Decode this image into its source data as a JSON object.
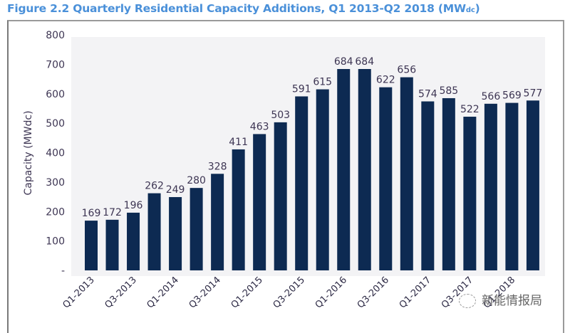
{
  "title": {
    "main": "Figure 2.2 Quarterly Residential Capacity Additions, Q1 2013-Q2 2018 (MW",
    "subscript": "dc",
    "close": ")"
  },
  "watermark": {
    "text": "新能情报局"
  },
  "colors": {
    "bar": "#0d2a52",
    "title": "#4a90d9",
    "plot_background": "#f3f3f5"
  },
  "chart_data": {
    "type": "bar",
    "title": "Figure 2.2 Quarterly Residential Capacity Additions, Q1 2013-Q2 2018 (MWdc)",
    "xlabel": "",
    "ylabel": "Capacity (MWdc)",
    "ylim": [
      0,
      800
    ],
    "yticks": [
      0,
      100,
      200,
      300,
      400,
      500,
      600,
      700,
      800
    ],
    "ytick_labels": [
      "-",
      "100",
      "200",
      "300",
      "400",
      "500",
      "600",
      "700",
      "800"
    ],
    "grid": false,
    "legend": "none",
    "categories": [
      "Q1-2013",
      "Q2-2013",
      "Q3-2013",
      "Q4-2013",
      "Q1-2014",
      "Q2-2014",
      "Q3-2014",
      "Q4-2014",
      "Q1-2015",
      "Q2-2015",
      "Q3-2015",
      "Q4-2015",
      "Q1-2016",
      "Q2-2016",
      "Q3-2016",
      "Q4-2016",
      "Q1-2017",
      "Q2-2017",
      "Q3-2017",
      "Q4-2017",
      "Q1-2018",
      "Q2-2018"
    ],
    "xtick_labels_shown": [
      "Q1-2013",
      "",
      "Q3-2013",
      "",
      "Q1-2014",
      "",
      "Q3-2014",
      "",
      "Q1-2015",
      "",
      "Q3-2015",
      "",
      "Q1-2016",
      "",
      "Q3-2016",
      "",
      "Q1-2017",
      "",
      "Q3-2017",
      "",
      "Q1-2018",
      ""
    ],
    "values": [
      169,
      172,
      196,
      262,
      249,
      280,
      328,
      411,
      463,
      503,
      591,
      615,
      684,
      684,
      622,
      656,
      574,
      585,
      522,
      566,
      569,
      577
    ],
    "data_labels": [
      "169",
      "172",
      "196",
      "262",
      "249",
      "280",
      "328",
      "411",
      "463",
      "503",
      "591",
      "615",
      "684",
      "684",
      "622",
      "656",
      "574",
      "585",
      "522",
      "566",
      "569",
      "577"
    ]
  }
}
